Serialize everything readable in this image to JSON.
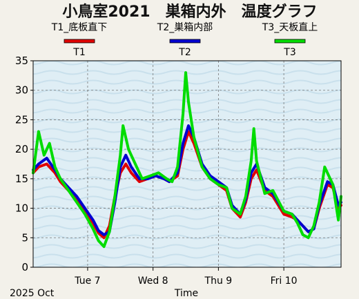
{
  "chart_data": {
    "type": "line",
    "title": "小鳥室2021　巣箱内外　温度グラフ",
    "xlabel": "Time",
    "date_label": "2025 Oct",
    "ylim": [
      0,
      35
    ],
    "y_ticks": [
      0,
      5,
      10,
      15,
      20,
      25,
      30,
      35
    ],
    "xlim": [
      "2025-10-06T04:00",
      "2025-10-10T21:00"
    ],
    "x_ticks": [
      {
        "label": "Tue 7",
        "value": "2025-10-07T00:00"
      },
      {
        "label": "Wed 8",
        "value": "2025-10-08T00:00"
      },
      {
        "label": "Thu 9",
        "value": "2025-10-09T00:00"
      },
      {
        "label": "Fri 10",
        "value": "2025-10-10T00:00"
      }
    ],
    "grid": true,
    "legend_position": "top",
    "legend_descriptions": [
      "T1_底板直下",
      "T2_巣箱内部",
      "T3_天板直上"
    ],
    "series": [
      {
        "name": "T1",
        "color": "#e00000",
        "x": [
          "2025-10-06T04:00",
          "2025-10-06T06:00",
          "2025-10-06T09:00",
          "2025-10-06T12:00",
          "2025-10-06T14:00",
          "2025-10-06T17:00",
          "2025-10-06T20:00",
          "2025-10-06T23:00",
          "2025-10-07T02:00",
          "2025-10-07T04:00",
          "2025-10-07T06:00",
          "2025-10-07T08:00",
          "2025-10-07T10:00",
          "2025-10-07T12:00",
          "2025-10-07T14:00",
          "2025-10-07T16:00",
          "2025-10-07T19:00",
          "2025-10-07T22:00",
          "2025-10-08T01:00",
          "2025-10-08T04:00",
          "2025-10-08T06:00",
          "2025-10-08T09:00",
          "2025-10-08T11:00",
          "2025-10-08T13:00",
          "2025-10-08T15:00",
          "2025-10-08T18:00",
          "2025-10-08T21:00",
          "2025-10-09T00:00",
          "2025-10-09T03:00",
          "2025-10-09T05:00",
          "2025-10-09T08:00",
          "2025-10-09T10:00",
          "2025-10-09T12:00",
          "2025-10-09T14:00",
          "2025-10-09T17:00",
          "2025-10-09T20:00",
          "2025-10-10T00:00",
          "2025-10-10T03:00",
          "2025-10-10T05:00",
          "2025-10-10T07:00",
          "2025-10-10T09:00",
          "2025-10-10T11:00",
          "2025-10-10T13:00",
          "2025-10-10T16:00",
          "2025-10-10T18:00",
          "2025-10-10T20:00",
          "2025-10-10T21:00"
        ],
        "values": [
          16.0,
          17.0,
          17.5,
          16.0,
          14.5,
          13.0,
          11.5,
          9.5,
          7.5,
          5.8,
          5.0,
          7.0,
          12.0,
          16.0,
          17.5,
          16.0,
          14.5,
          15.0,
          15.5,
          15.0,
          14.5,
          15.5,
          20.0,
          23.0,
          21.0,
          17.0,
          15.0,
          14.0,
          13.0,
          10.0,
          8.5,
          11.0,
          15.0,
          16.5,
          13.0,
          12.0,
          9.0,
          8.5,
          8.0,
          7.0,
          6.0,
          6.5,
          10.0,
          14.0,
          13.5,
          10.0,
          10.5
        ]
      },
      {
        "name": "T2",
        "color": "#0000d0",
        "x": [
          "2025-10-06T04:00",
          "2025-10-06T06:00",
          "2025-10-06T09:00",
          "2025-10-06T12:00",
          "2025-10-06T14:00",
          "2025-10-06T17:00",
          "2025-10-06T20:00",
          "2025-10-06T23:00",
          "2025-10-07T02:00",
          "2025-10-07T04:00",
          "2025-10-07T06:00",
          "2025-10-07T08:00",
          "2025-10-07T10:00",
          "2025-10-07T12:00",
          "2025-10-07T14:00",
          "2025-10-07T16:00",
          "2025-10-07T19:00",
          "2025-10-07T22:00",
          "2025-10-08T01:00",
          "2025-10-08T04:00",
          "2025-10-08T06:00",
          "2025-10-08T09:00",
          "2025-10-08T11:00",
          "2025-10-08T13:00",
          "2025-10-08T15:00",
          "2025-10-08T18:00",
          "2025-10-08T21:00",
          "2025-10-09T00:00",
          "2025-10-09T03:00",
          "2025-10-09T05:00",
          "2025-10-09T08:00",
          "2025-10-09T10:00",
          "2025-10-09T12:00",
          "2025-10-09T14:00",
          "2025-10-09T17:00",
          "2025-10-09T20:00",
          "2025-10-10T00:00",
          "2025-10-10T03:00",
          "2025-10-10T05:00",
          "2025-10-10T07:00",
          "2025-10-10T09:00",
          "2025-10-10T11:00",
          "2025-10-10T13:00",
          "2025-10-10T16:00",
          "2025-10-10T18:00",
          "2025-10-10T20:00",
          "2025-10-10T21:00"
        ],
        "values": [
          16.5,
          17.5,
          18.5,
          16.5,
          15.0,
          13.5,
          12.0,
          10.0,
          8.0,
          6.2,
          5.5,
          6.0,
          11.0,
          17.0,
          19.0,
          17.0,
          15.0,
          15.0,
          15.5,
          15.0,
          14.5,
          16.0,
          21.0,
          24.0,
          22.0,
          17.5,
          15.5,
          14.5,
          13.5,
          10.5,
          9.0,
          11.5,
          16.0,
          17.5,
          13.5,
          12.5,
          9.5,
          9.0,
          8.0,
          7.0,
          6.0,
          6.5,
          10.5,
          14.5,
          14.0,
          10.5,
          11.0
        ]
      },
      {
        "name": "T3",
        "color": "#00dc00",
        "x": [
          "2025-10-06T04:00",
          "2025-10-06T06:00",
          "2025-10-06T08:00",
          "2025-10-06T10:00",
          "2025-10-06T12:00",
          "2025-10-06T14:00",
          "2025-10-06T17:00",
          "2025-10-06T20:00",
          "2025-10-06T23:00",
          "2025-10-07T02:00",
          "2025-10-07T04:00",
          "2025-10-07T06:00",
          "2025-10-07T08:00",
          "2025-10-07T10:00",
          "2025-10-07T12:00",
          "2025-10-07T13:00",
          "2025-10-07T15:00",
          "2025-10-07T17:00",
          "2025-10-07T20:00",
          "2025-10-07T23:00",
          "2025-10-08T02:00",
          "2025-10-08T05:00",
          "2025-10-08T07:00",
          "2025-10-08T09:00",
          "2025-10-08T11:00",
          "2025-10-08T12:00",
          "2025-10-08T13:00",
          "2025-10-08T15:00",
          "2025-10-08T18:00",
          "2025-10-08T21:00",
          "2025-10-09T00:00",
          "2025-10-09T03:00",
          "2025-10-09T05:00",
          "2025-10-09T08:00",
          "2025-10-09T10:00",
          "2025-10-09T12:00",
          "2025-10-09T13:00",
          "2025-10-09T14:00",
          "2025-10-09T17:00",
          "2025-10-09T20:00",
          "2025-10-10T00:00",
          "2025-10-10T03:00",
          "2025-10-10T05:00",
          "2025-10-10T07:00",
          "2025-10-10T09:00",
          "2025-10-10T11:00",
          "2025-10-10T13:00",
          "2025-10-10T15:00",
          "2025-10-10T18:00",
          "2025-10-10T20:00",
          "2025-10-10T21:00"
        ],
        "values": [
          16.0,
          23.0,
          19.0,
          21.0,
          17.0,
          15.0,
          13.0,
          11.0,
          9.0,
          6.5,
          4.5,
          3.5,
          6.0,
          12.0,
          19.0,
          24.0,
          20.0,
          18.0,
          15.0,
          15.5,
          16.0,
          15.0,
          14.5,
          17.0,
          26.0,
          33.0,
          28.0,
          22.0,
          17.0,
          15.0,
          14.0,
          13.5,
          10.0,
          9.0,
          12.0,
          18.0,
          23.5,
          18.0,
          12.5,
          13.0,
          9.5,
          9.0,
          7.5,
          5.5,
          5.0,
          7.0,
          11.0,
          17.0,
          14.0,
          8.0,
          12.0
        ]
      }
    ]
  }
}
